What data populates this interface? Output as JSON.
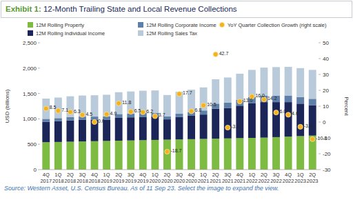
{
  "chart_data": {
    "type": "bar",
    "title": "Exhibit 1: 12-Month Trailing State and Local Revenue Collections",
    "source": "Source: Western Asset, U.S. Census Bureau. As of 11 Sep 23. Select the image to expand the view.",
    "y_label": "USD (billions)",
    "y2_label": "Percent",
    "stacked": true,
    "legend": "top",
    "grid": false,
    "categories": [
      "4Q 2017",
      "1Q 2018",
      "2Q 2018",
      "3Q 2018",
      "4Q 2018",
      "1Q 2019",
      "2Q 2019",
      "3Q 2019",
      "4Q 2019",
      "1Q 2020",
      "2Q 2020",
      "3Q 2020",
      "4Q 2020",
      "1Q 2021",
      "2Q 2021",
      "3Q 2021",
      "4Q 2021",
      "1Q 2022",
      "2Q 2022",
      "3Q 2022",
      "4Q 2022",
      "1Q 2023",
      "2Q 2023"
    ],
    "ylim": [
      0,
      2500
    ],
    "yticks": [
      0,
      500,
      {
        "value": 1000,
        "label": "1,000"
      },
      {
        "value": 1500,
        "label": "1,500"
      },
      {
        "value": 2000,
        "label": "2,000"
      },
      {
        "value": 2500,
        "label": "2,500"
      }
    ],
    "y2lim": [
      -30,
      50
    ],
    "y2ticks": [
      -30,
      -20,
      -10,
      0,
      10,
      20,
      30,
      40,
      50
    ],
    "series": [
      {
        "name": "12M Rolling Property",
        "type": "bar",
        "color": "#7dbb42",
        "values": [
          540,
          545,
          550,
          555,
          560,
          565,
          570,
          575,
          580,
          585,
          590,
          595,
          600,
          605,
          610,
          615,
          620,
          625,
          630,
          640,
          650,
          660,
          670
        ]
      },
      {
        "name": "12M Rolling Individual Income",
        "type": "bar",
        "color": "#1c2557",
        "values": [
          400,
          410,
          420,
          425,
          420,
          415,
          450,
          455,
          460,
          460,
          400,
          440,
          460,
          480,
          590,
          600,
          640,
          680,
          700,
          690,
          680,
          640,
          600
        ]
      },
      {
        "name": "12M Rolling Corporate Income",
        "type": "bar",
        "color": "#5d7fa8",
        "values": [
          60,
          60,
          65,
          65,
          65,
          70,
          75,
          75,
          75,
          75,
          60,
          70,
          75,
          80,
          100,
          105,
          115,
          125,
          130,
          130,
          130,
          130,
          125
        ]
      },
      {
        "name": "12M Rolling Sales Tax",
        "type": "bar",
        "color": "#b9cadb",
        "values": [
          400,
          405,
          410,
          415,
          420,
          425,
          430,
          435,
          440,
          440,
          420,
          430,
          440,
          455,
          480,
          495,
          515,
          535,
          550,
          560,
          565,
          570,
          570
        ]
      },
      {
        "name": "YoY Quarter Collection Growth (right scale)",
        "type": "scatter",
        "axis": "y2",
        "color": "#f3b321",
        "marker": "circle",
        "data_labels": true,
        "values": [
          8.5,
          7.1,
          6.3,
          4.5,
          0.0,
          4.9,
          11.8,
          6.5,
          6.2,
          3.7,
          -18.7,
          17.7,
          6.8,
          10.5,
          42.7,
          -3.5,
          13.0,
          16.0,
          14.2,
          6.0,
          4.6,
          -3.0,
          -10.8
        ],
        "value_labels": [
          "8.5",
          "7.1",
          "6.3",
          "4.5",
          "0.0",
          "4.9",
          "11.8",
          "6.5",
          "6.2",
          "3.7",
          "-18.7",
          "17.7",
          "6.8",
          "10.5",
          "42.7",
          "-3.5",
          "13.0",
          "16.0",
          "14.2",
          "6.0",
          "4.6",
          "-3.0",
          "-10.8"
        ]
      }
    ]
  }
}
